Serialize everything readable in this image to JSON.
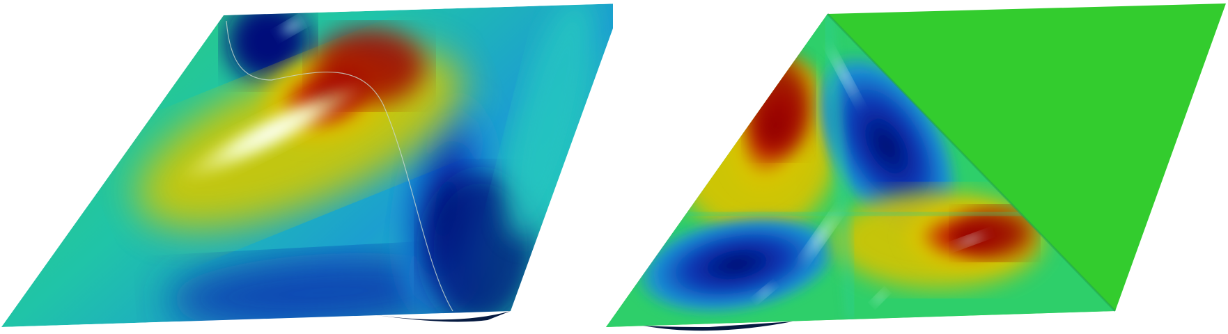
{
  "figure": {
    "panels": [
      {
        "id": "left",
        "description_key": "surface-plot-saddle-wave"
      },
      {
        "id": "right",
        "description_key": "surface-plot-triangular-mode"
      }
    ],
    "colors": {
      "low": "#00127a",
      "mid_low": "#1a73d6",
      "mid": "#27c9a0",
      "flat": "#33cc33",
      "mid_high": "#d6cc00",
      "high": "#a50000",
      "highlight": "#ffffff"
    }
  }
}
